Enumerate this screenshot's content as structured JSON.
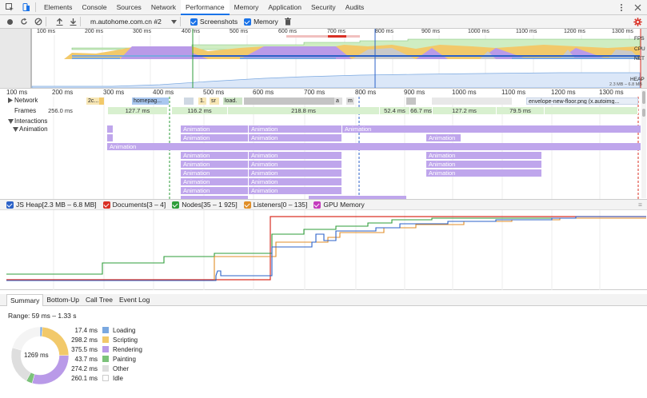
{
  "tabs": {
    "items": [
      "Elements",
      "Console",
      "Sources",
      "Network",
      "Performance",
      "Memory",
      "Application",
      "Security",
      "Audits"
    ],
    "active": "Performance"
  },
  "toolbar": {
    "profile_select": "m.autohome.com.cn #2",
    "screenshots_label": "Screenshots",
    "memory_label": "Memory"
  },
  "overview": {
    "ticks": [
      "100 ms",
      "200 ms",
      "300 ms",
      "400 ms",
      "500 ms",
      "600 ms",
      "700 ms",
      "800 ms",
      "900 ms",
      "1000 ms",
      "1100 ms",
      "1200 ms",
      "1300 ms"
    ],
    "lanes": [
      "FPS",
      "CPU",
      "NET"
    ],
    "heap_label": "HEAP",
    "heap_range": "2.3 MB – 6.8 MB"
  },
  "ruler": {
    "ticks": [
      "100 ms",
      "200 ms",
      "300 ms",
      "400 ms",
      "500 ms",
      "600 ms",
      "700 ms",
      "800 ms",
      "900 ms",
      "1000 ms",
      "1100 ms",
      "1200 ms",
      "1300 ms"
    ]
  },
  "tracks": {
    "network_label": "Network",
    "frames_label": "Frames",
    "interactions_label": "Interactions",
    "animation_label": "Animation",
    "network_items": [
      "2c...",
      "homepag...",
      "1.",
      "sr",
      "load.",
      "a",
      "m",
      "envelope-new-floor.png (x.autoimg..."
    ],
    "frames": [
      "256.0 ms",
      "127.7 ms",
      "116.2 ms",
      "218.8 ms",
      "52.4 ms",
      "66.7 ms",
      "127.2 ms",
      "79.5 ms"
    ],
    "animation_text": "Animation"
  },
  "memory": {
    "legend": [
      {
        "label": "JS Heap[2.3 MB – 6.8 MB]",
        "color": "#2b62c8"
      },
      {
        "label": "Documents[3 – 4]",
        "color": "#d93025"
      },
      {
        "label": "Nodes[35 – 1 925]",
        "color": "#2e9d3a"
      },
      {
        "label": "Listeners[0 – 135]",
        "color": "#e08e28"
      },
      {
        "label": "GPU Memory",
        "color": "#c43bbd"
      }
    ]
  },
  "bottom": {
    "tabs": [
      "Summary",
      "Bottom-Up",
      "Call Tree",
      "Event Log"
    ],
    "active": "Summary",
    "range": "Range: 59 ms – 1.33 s",
    "total": "1269 ms",
    "categories": [
      {
        "value": "17.4 ms",
        "label": "Loading",
        "color": "#7aa8e0"
      },
      {
        "value": "298.2 ms",
        "label": "Scripting",
        "color": "#f2c96a"
      },
      {
        "value": "375.5 ms",
        "label": "Rendering",
        "color": "#b99ae8"
      },
      {
        "value": "43.7 ms",
        "label": "Painting",
        "color": "#7cc27a"
      },
      {
        "value": "274.2 ms",
        "label": "Other",
        "color": "#dedede"
      },
      {
        "value": "260.1 ms",
        "label": "Idle",
        "color": "#ffffff"
      }
    ]
  }
}
